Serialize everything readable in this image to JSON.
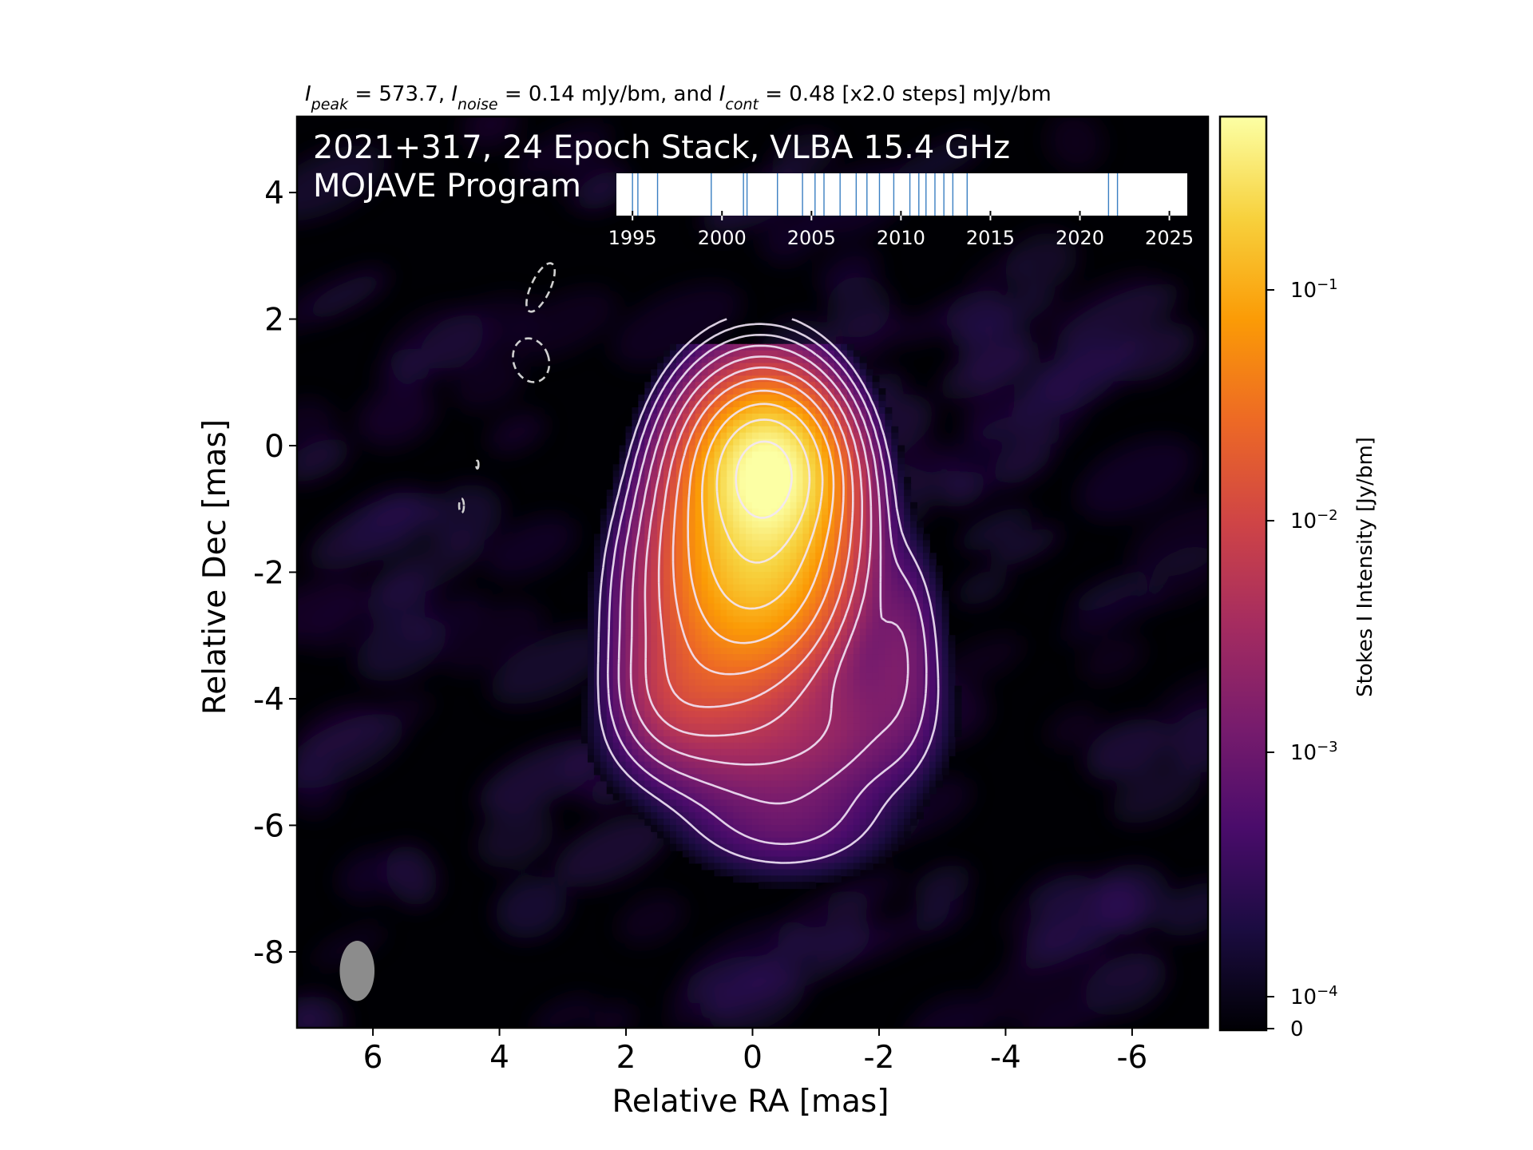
{
  "chart_data": {
    "type": "heatmap",
    "header": {
      "peak_symbol": "I",
      "peak_sub": "peak",
      "peak_text": " = 573.7, ",
      "noise_symbol": "I",
      "noise_sub": "noise",
      "noise_text": " = 0.14 mJy/bm, and ",
      "cont_symbol": "I",
      "cont_sub": "cont",
      "cont_text": " = 0.48 [x2.0 steps] mJy/bm"
    },
    "title_line1": "2021+317, 24 Epoch Stack, VLBA 15.4 GHz",
    "title_line2": "MOJAVE Program",
    "xlabel": "Relative RA [mas]",
    "ylabel": "Relative Dec [mas]",
    "xlim": [
      7.2,
      -7.2
    ],
    "ylim": [
      -9.2,
      5.2
    ],
    "x_ticks": [
      6,
      4,
      2,
      0,
      -2,
      -4,
      -6
    ],
    "x_tick_labels": [
      "6",
      "4",
      "2",
      "0",
      "-2",
      "-4",
      "-6"
    ],
    "y_ticks": [
      4,
      2,
      0,
      -2,
      -4,
      -6,
      -8
    ],
    "y_tick_labels": [
      "4",
      "2",
      "0",
      "-2",
      "-4",
      "-6",
      "-8"
    ],
    "colorbar": {
      "label": "Stokes I Intensity [Jy/bm]",
      "scale": "log",
      "ticks": [
        {
          "mantissa": "10",
          "exp": "−1"
        },
        {
          "mantissa": "10",
          "exp": "−2"
        },
        {
          "mantissa": "10",
          "exp": "−3"
        },
        {
          "mantissa": "10",
          "exp": "−4"
        },
        {
          "mantissa": "0",
          "exp": ""
        }
      ],
      "colors": [
        "#000004",
        "#1b0c41",
        "#4a0c6b",
        "#781c6d",
        "#a52c60",
        "#cf4446",
        "#ed6925",
        "#fb9b06",
        "#f7d13d",
        "#fcffa4"
      ]
    },
    "beam": {
      "x": 6.25,
      "y": -8.3,
      "major": 0.95,
      "minor": 0.55,
      "color": "#8c8c8c"
    },
    "epochs": {
      "axis_ticks": [
        1995,
        2000,
        2005,
        2010,
        2015,
        2020,
        2025
      ],
      "axis_tick_labels": [
        "1995",
        "2000",
        "2005",
        "2010",
        "2015",
        "2020",
        "2025"
      ],
      "range": [
        1994.1,
        2026.0
      ],
      "dates": [
        1995.0,
        1995.3,
        1996.4,
        1999.4,
        2001.2,
        2001.4,
        2003.1,
        2004.5,
        2005.2,
        2005.7,
        2006.6,
        2007.5,
        2008.1,
        2008.8,
        2009.6,
        2010.5,
        2011.0,
        2011.4,
        2011.9,
        2012.4,
        2012.9,
        2013.7,
        2021.6,
        2022.1
      ],
      "line_color": "#3a7fc2"
    },
    "emission_components": [
      {
        "x": -0.2,
        "y": -0.4,
        "sx": 0.45,
        "sy": 0.55,
        "amp": 0.55
      },
      {
        "x": -0.1,
        "y": -1.1,
        "sx": 0.6,
        "sy": 0.9,
        "amp": 0.25
      },
      {
        "x": 0.15,
        "y": -2.2,
        "sx": 0.7,
        "sy": 0.8,
        "amp": 0.06
      },
      {
        "x": 0.6,
        "y": -3.3,
        "sx": 0.65,
        "sy": 0.7,
        "amp": 0.015
      },
      {
        "x": 1.2,
        "y": -3.9,
        "sx": 0.45,
        "sy": 0.5,
        "amp": 0.006
      },
      {
        "x": 0.2,
        "y": -4.6,
        "sx": 1.0,
        "sy": 0.6,
        "amp": 0.003
      },
      {
        "x": -1.0,
        "y": -4.3,
        "sx": 0.9,
        "sy": 0.7,
        "amp": 0.0025
      },
      {
        "x": -2.3,
        "y": -3.2,
        "sx": 0.35,
        "sy": 0.9,
        "amp": 0.0018
      },
      {
        "x": -0.5,
        "y": -5.9,
        "sx": 0.9,
        "sy": 0.5,
        "amp": 0.0012
      }
    ]
  }
}
